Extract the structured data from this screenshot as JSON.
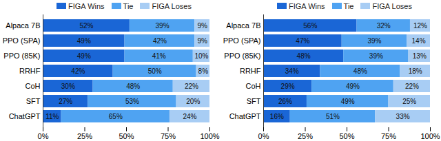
{
  "chart_data": [
    {
      "type": "bar",
      "orientation": "horizontal",
      "stacked": true,
      "data_labels": true,
      "grid": false,
      "legend": "top",
      "categories": [
        "Alpaca 7B",
        "PPO (SPA)",
        "PPO (85K)",
        "RRHF",
        "CoH",
        "SFT",
        "ChatGPT"
      ],
      "series": [
        {
          "name": "FIGA Wins",
          "color": "#1a66d6",
          "values": [
            52,
            49,
            49,
            42,
            30,
            27,
            11
          ],
          "value_labels": [
            "52%",
            "49%",
            "49%",
            "42%",
            "30%",
            "27%",
            "11%"
          ]
        },
        {
          "name": "Tie",
          "color": "#4fa3f2",
          "values": [
            39,
            42,
            41,
            50,
            48,
            53,
            65
          ],
          "value_labels": [
            "39%",
            "42%",
            "41%",
            "50%",
            "48%",
            "53%",
            "65%"
          ]
        },
        {
          "name": "FIGA Loses",
          "color": "#a8cdf4",
          "values": [
            9,
            9,
            10,
            8,
            22,
            20,
            24
          ],
          "value_labels": [
            "9%",
            "9%",
            "10%",
            "8%",
            "22%",
            "20%",
            "24%"
          ]
        }
      ],
      "xlim": [
        0,
        100
      ],
      "xticks": [
        {
          "value": 0,
          "label": "0%"
        },
        {
          "value": 25,
          "label": "25%"
        },
        {
          "value": 50,
          "label": "50%"
        },
        {
          "value": 75,
          "label": "75%"
        },
        {
          "value": 100,
          "label": "100%"
        }
      ]
    },
    {
      "type": "bar",
      "orientation": "horizontal",
      "stacked": true,
      "data_labels": true,
      "grid": false,
      "legend": "top",
      "categories": [
        "Alpaca 7B",
        "PPO (SPA)",
        "PPO (85K)",
        "RRHF",
        "CoH",
        "SFT",
        "ChatGPT"
      ],
      "series": [
        {
          "name": "FIGA Wins",
          "color": "#1a66d6",
          "values": [
            56,
            47,
            48,
            34,
            29,
            26,
            16
          ],
          "value_labels": [
            "56%",
            "47%",
            "48%",
            "34%",
            "29%",
            "26%",
            "16%"
          ]
        },
        {
          "name": "Tie",
          "color": "#4fa3f2",
          "values": [
            32,
            39,
            39,
            48,
            49,
            49,
            51
          ],
          "value_labels": [
            "32%",
            "39%",
            "39%",
            "48%",
            "49%",
            "49%",
            "51%"
          ]
        },
        {
          "name": "FIGA Loses",
          "color": "#a8cdf4",
          "values": [
            12,
            14,
            13,
            18,
            22,
            25,
            33
          ],
          "value_labels": [
            "12%",
            "14%",
            "13%",
            "18%",
            "22%",
            "25%",
            "33%"
          ]
        }
      ],
      "xlim": [
        0,
        100
      ],
      "xticks": [
        {
          "value": 0,
          "label": "0%"
        },
        {
          "value": 25,
          "label": "25%"
        },
        {
          "value": 50,
          "label": "50%"
        },
        {
          "value": 75,
          "label": "75%"
        },
        {
          "value": 100,
          "label": "100%"
        }
      ]
    }
  ]
}
